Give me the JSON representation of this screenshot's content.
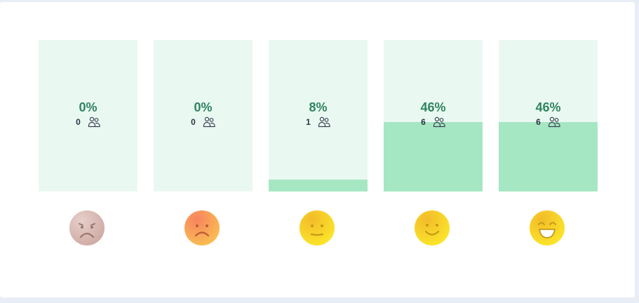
{
  "rating_distribution": [
    {
      "mood": "very-unhappy",
      "percent_label": "0%",
      "fill_percent": 0,
      "count": "0",
      "icon": "sad-face-icon",
      "face_color": "#d9b8b2"
    },
    {
      "mood": "unhappy",
      "percent_label": "0%",
      "fill_percent": 0,
      "count": "0",
      "icon": "frown-face-icon",
      "face_color": "#f9a45f"
    },
    {
      "mood": "neutral",
      "percent_label": "8%",
      "fill_percent": 8,
      "count": "1",
      "icon": "neutral-face-icon",
      "face_color": "#f6d928"
    },
    {
      "mood": "happy",
      "percent_label": "46%",
      "fill_percent": 46,
      "count": "6",
      "icon": "smile-face-icon",
      "face_color": "#f6d928"
    },
    {
      "mood": "very-happy",
      "percent_label": "46%",
      "fill_percent": 46,
      "count": "6",
      "icon": "big-smile-face-icon",
      "face_color": "#f6d928"
    }
  ],
  "colors": {
    "bar_background": "#eaf8f2",
    "bar_fill": "#a6e7c3",
    "percent_text": "#2f8560"
  }
}
